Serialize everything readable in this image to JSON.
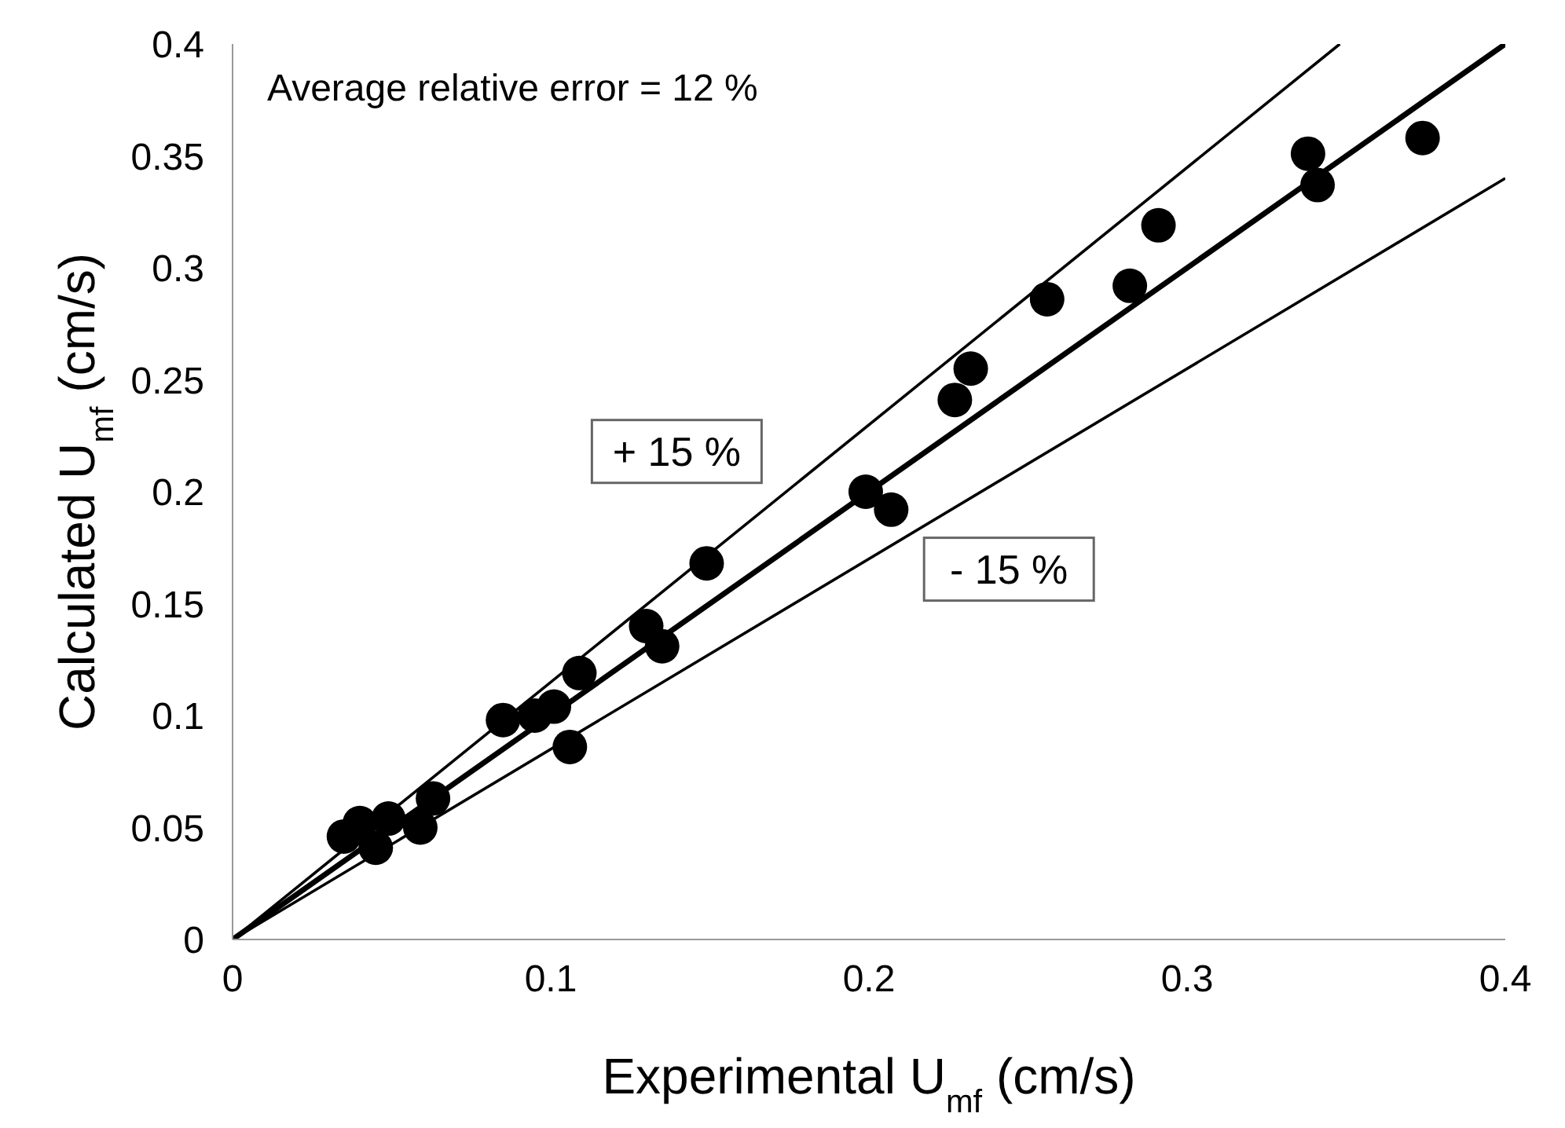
{
  "chart_data": {
    "type": "scatter",
    "xlabel": "Experimental U$_{mf}$ (cm/s)",
    "ylabel": "Calculated U$_{mf}$ (cm/s)",
    "xlim": [
      0,
      0.4
    ],
    "ylim": [
      0,
      0.4
    ],
    "xticks": [
      0,
      0.1,
      0.2,
      0.3,
      0.4
    ],
    "yticks": [
      0,
      0.05,
      0.1,
      0.15,
      0.2,
      0.25,
      0.3,
      0.35,
      0.4
    ],
    "grid": false,
    "legend": false,
    "marker": "circle",
    "series": [
      {
        "color": "#000000",
        "x": [
          0.035,
          0.04,
          0.045,
          0.049,
          0.059,
          0.063,
          0.085,
          0.095,
          0.101,
          0.106,
          0.109,
          0.13,
          0.135,
          0.149,
          0.199,
          0.207,
          0.227,
          0.232,
          0.256,
          0.282,
          0.291,
          0.338,
          0.341,
          0.374
        ],
        "values": [
          0.046,
          0.052,
          0.041,
          0.054,
          0.05,
          0.063,
          0.098,
          0.1,
          0.104,
          0.086,
          0.119,
          0.14,
          0.131,
          0.168,
          0.2,
          0.192,
          0.241,
          0.255,
          0.286,
          0.292,
          0.319,
          0.351,
          0.337,
          0.358
        ]
      },
      {
        "type": "line",
        "color": "#000000",
        "line_style": "solid",
        "marker": "none",
        "x": [
          0,
          0.4
        ],
        "values": [
          0,
          0.4
        ]
      },
      {
        "type": "line",
        "name": "+ 15 %",
        "color": "#000000",
        "line_style": "solid",
        "marker": "none",
        "x": [
          0,
          0.348
        ],
        "values": [
          0,
          0.4
        ]
      },
      {
        "type": "line",
        "name": "- 15 %",
        "color": "#000000",
        "line_style": "solid",
        "marker": "none",
        "x": [
          0,
          0.4
        ],
        "values": [
          0,
          0.34
        ]
      }
    ],
    "annotations": [
      "Average relative error = 12 %"
    ]
  }
}
